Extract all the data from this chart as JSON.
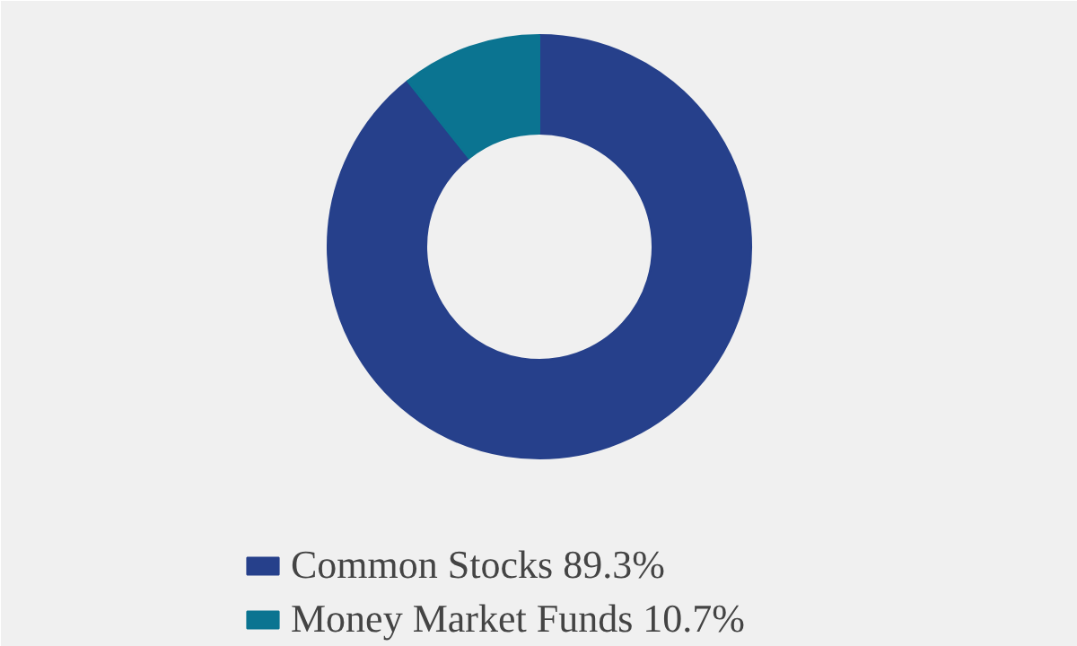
{
  "chart_data": {
    "type": "donut",
    "categories": [
      "Common Stocks 89.3%",
      "Money Market Funds 10.7%"
    ],
    "values": [
      89.3,
      10.7
    ],
    "colors": [
      "#26408b",
      "#0b7491"
    ],
    "legend": "bottom"
  }
}
